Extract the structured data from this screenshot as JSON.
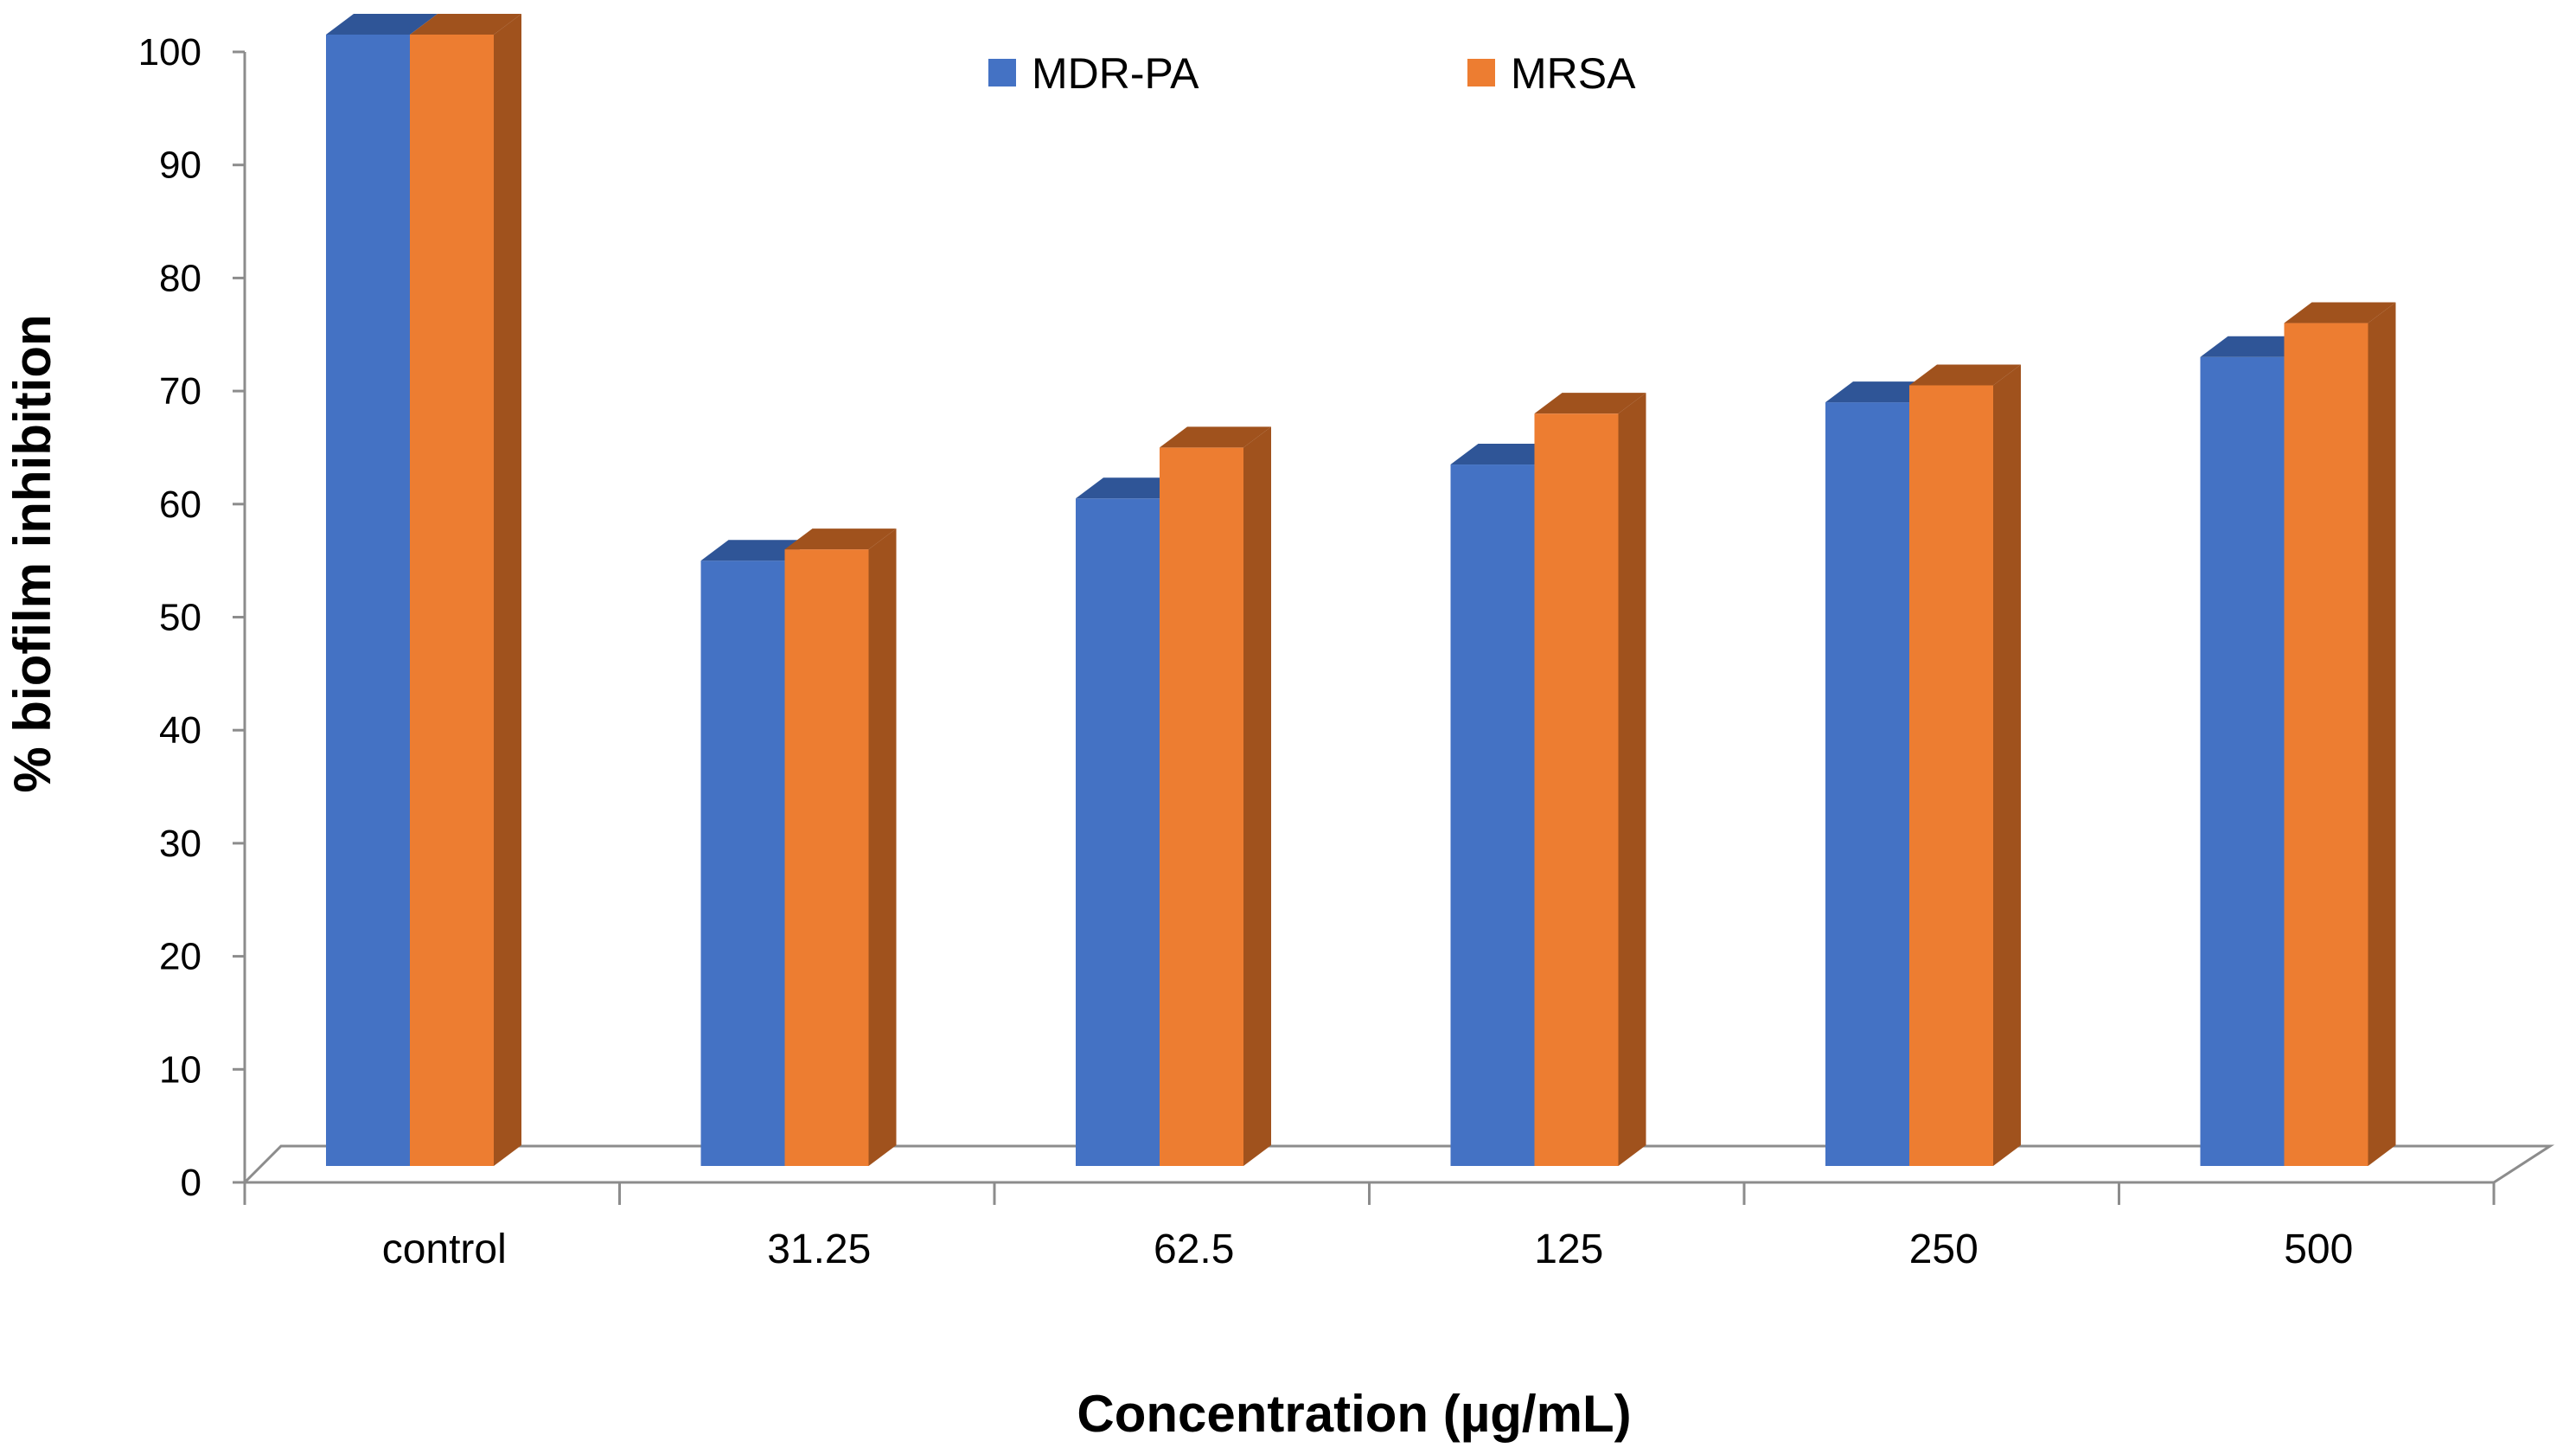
{
  "chart_data": {
    "type": "bar",
    "style": "3d-clustered-column",
    "title": "",
    "xlabel": "Concentration (µg/mL)",
    "ylabel": "% biofilm inhibition",
    "ylim": [
      0,
      100
    ],
    "yticks": [
      0,
      10,
      20,
      30,
      40,
      50,
      60,
      70,
      80,
      90,
      100
    ],
    "grid": false,
    "legend_position": "top-center",
    "categories": [
      "control",
      "31.25",
      "62.5",
      "125",
      "250",
      "500"
    ],
    "series": [
      {
        "name": "MDR-PA",
        "color": "#4472C4",
        "side_color": "#2F5597",
        "values": [
          100,
          53.5,
          59,
          62,
          67.5,
          71.5
        ]
      },
      {
        "name": "MRSA",
        "color": "#ED7D31",
        "side_color": "#A0521D",
        "values": [
          100,
          54.5,
          63.5,
          66.5,
          69,
          74.5
        ]
      }
    ]
  }
}
